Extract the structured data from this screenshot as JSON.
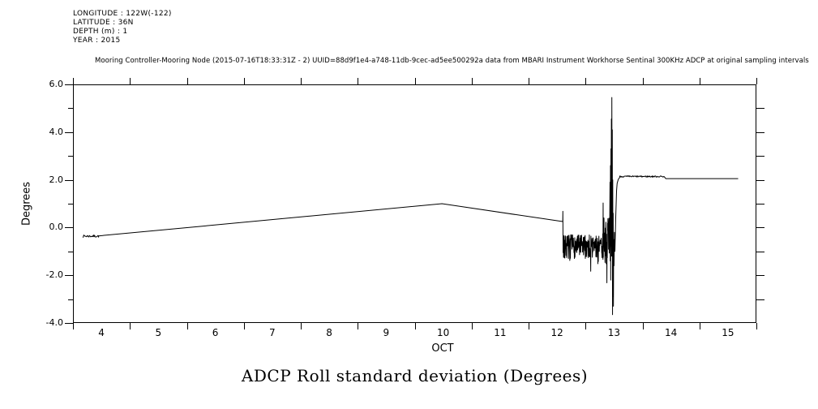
{
  "header": {
    "lines": [
      "LONGITUDE : 122W(-122)",
      "LATITUDE : 36N",
      "DEPTH (m) : 1",
      "YEAR : 2015"
    ]
  },
  "subtitle": "Mooring Controller-Mooring Node (2015-07-16T18:33:31Z - 2) UUID=88d9f1e4-a748-11db-9cec-ad5ee500292a data from MBARI Instrument Workhorse Sentinal 300KHz ADCP at original sampling intervals",
  "colors": {
    "foreground": "#000000",
    "background": "#ffffff"
  },
  "chart_data": {
    "type": "line",
    "title": "ADCP Roll standard deviation (Degrees)",
    "xlabel": "OCT",
    "ylabel": "Degrees",
    "xlim": [
      4,
      16
    ],
    "ylim": [
      -4.0,
      6.0
    ],
    "grid": false,
    "frame": "box-with-outward-ticks",
    "x_axis": {
      "boundary_ticks_days": [
        4,
        5,
        6,
        7,
        8,
        9,
        10,
        11,
        12,
        13,
        14,
        15,
        16
      ],
      "labels": [
        {
          "v": 4.5,
          "label": "4"
        },
        {
          "v": 5.5,
          "label": "5"
        },
        {
          "v": 6.5,
          "label": "6"
        },
        {
          "v": 7.5,
          "label": "7"
        },
        {
          "v": 8.5,
          "label": "8"
        },
        {
          "v": 9.5,
          "label": "9"
        },
        {
          "v": 10.5,
          "label": "10"
        },
        {
          "v": 11.5,
          "label": "11"
        },
        {
          "v": 12.5,
          "label": "12"
        },
        {
          "v": 13.5,
          "label": "13"
        },
        {
          "v": 14.5,
          "label": "14"
        },
        {
          "v": 15.5,
          "label": "15"
        }
      ]
    },
    "y_axis": {
      "major": [
        {
          "v": 6,
          "label": "6.0"
        },
        {
          "v": 4,
          "label": "4.0"
        },
        {
          "v": 2,
          "label": "2.0"
        },
        {
          "v": 0,
          "label": "0.0"
        },
        {
          "v": -2,
          "label": "-2.0"
        },
        {
          "v": -4,
          "label": "-4.0"
        }
      ],
      "minor": [
        5,
        3,
        1,
        -1,
        -3
      ],
      "right_ticks": [
        5,
        4,
        3,
        2,
        1,
        0,
        -1,
        -2,
        -3
      ]
    },
    "noise_seed": 7,
    "series": [
      {
        "name": "ADCP Roll standard deviation",
        "color": "#000000",
        "segments": [
          {
            "type": "jitter",
            "x0": 4.17,
            "x1": 4.45,
            "step": 0.01,
            "mean": -0.36,
            "amp": 0.05
          },
          {
            "type": "line",
            "x0": 4.45,
            "y0": -0.35,
            "x1": 10.48,
            "y1": 1.0
          },
          {
            "type": "line",
            "x0": 10.48,
            "y0": 1.0,
            "x1": 12.6,
            "y1": 0.25
          },
          {
            "type": "points",
            "pts": [
              [
                12.602,
                0.68
              ],
              [
                12.606,
                -1.05
              ],
              [
                12.61,
                -0.4
              ],
              [
                12.614,
                -1.25
              ]
            ]
          },
          {
            "type": "noise",
            "x0": 12.615,
            "x1": 13.3,
            "step": 0.0035,
            "mean": -0.8,
            "amp": 0.5,
            "spike_prob": 0.05,
            "spike_scale": 2.2
          },
          {
            "type": "noise",
            "x0": 13.3,
            "x1": 13.42,
            "step": 0.003,
            "mean": -0.55,
            "amp": 1.0,
            "spike_prob": 0.1,
            "spike_scale": 1.8
          },
          {
            "type": "points",
            "pts": [
              [
                13.425,
                0.3
              ],
              [
                13.43,
                1.9
              ],
              [
                13.434,
                -1.4
              ],
              [
                13.438,
                2.6
              ],
              [
                13.442,
                -2.2
              ],
              [
                13.446,
                3.3
              ],
              [
                13.45,
                -0.8
              ],
              [
                13.454,
                4.55
              ],
              [
                13.458,
                -1.2
              ],
              [
                13.462,
                5.45
              ],
              [
                13.466,
                -0.6
              ],
              [
                13.47,
                4.1
              ],
              [
                13.474,
                -3.65
              ],
              [
                13.478,
                2.0
              ],
              [
                13.482,
                -2.9
              ],
              [
                13.486,
                0.6
              ],
              [
                13.49,
                -3.3
              ],
              [
                13.494,
                -0.5
              ],
              [
                13.5,
                -1.6
              ],
              [
                13.508,
                -0.2
              ],
              [
                13.516,
                -1.0
              ],
              [
                13.53,
                0.4
              ],
              [
                13.545,
                1.55
              ],
              [
                13.555,
                1.85
              ],
              [
                13.575,
                2.02
              ],
              [
                13.6,
                2.1
              ]
            ]
          },
          {
            "type": "jitter",
            "x0": 13.6,
            "x1": 14.38,
            "step": 0.008,
            "mean": 2.14,
            "amp": 0.03
          },
          {
            "type": "points",
            "pts": [
              [
                14.385,
                2.12
              ],
              [
                14.41,
                2.05
              ]
            ]
          },
          {
            "type": "line",
            "x0": 14.41,
            "y0": 2.05,
            "x1": 15.68,
            "y1": 2.05
          }
        ]
      }
    ]
  }
}
